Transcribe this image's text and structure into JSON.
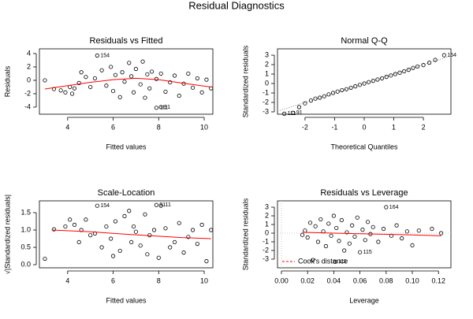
{
  "title": "Residual Diagnostics",
  "chart_data": [
    {
      "type": "scatter",
      "title": "Residuals vs Fitted",
      "xlabel": "Fitted values",
      "ylabel": "Residuals",
      "xlim": [
        2.76,
        10.38
      ],
      "ylim": [
        -5.06,
        4.7
      ],
      "xticks": [
        4,
        6,
        8,
        10
      ],
      "yticks": [
        -4,
        -2,
        0,
        2,
        4
      ],
      "color": "#000000",
      "x": [
        3.0,
        3.4,
        3.7,
        3.9,
        4.1,
        4.2,
        4.3,
        4.5,
        4.6,
        4.8,
        5.0,
        5.2,
        5.3,
        5.5,
        5.7,
        5.9,
        6.0,
        6.1,
        6.3,
        6.4,
        6.5,
        6.7,
        6.8,
        6.9,
        7.0,
        7.2,
        7.3,
        7.4,
        7.5,
        7.6,
        7.7,
        7.9,
        7.9,
        8.1,
        8.1,
        8.3,
        8.5,
        8.7,
        8.9,
        9.1,
        9.3,
        9.5,
        9.7,
        9.9,
        10.1,
        10.3
      ],
      "y": [
        0.0,
        -1.3,
        -1.5,
        -1.8,
        -1.0,
        -2.0,
        -1.2,
        -0.4,
        1.2,
        0.5,
        -1.0,
        0.3,
        3.7,
        1.5,
        -0.8,
        2.0,
        -1.6,
        0.8,
        -2.5,
        1.2,
        -0.2,
        2.6,
        0.6,
        -1.8,
        1.7,
        -0.6,
        2.8,
        -2.6,
        0.9,
        -1.2,
        1.3,
        -4.1,
        0.2,
        -4.0,
        1.0,
        -1.7,
        -0.3,
        0.7,
        -2.3,
        -0.5,
        1.0,
        -1.1,
        0.3,
        -1.8,
        0.1,
        -1.2
      ],
      "trend": {
        "color": "#ff0000",
        "x": [
          3.0,
          4.0,
          5.0,
          6.0,
          7.0,
          8.0,
          9.0,
          10.3
        ],
        "y": [
          -1.3,
          -0.8,
          -0.3,
          0.1,
          0.3,
          0.1,
          -0.4,
          -1.0
        ]
      },
      "annotations": [
        {
          "text": "154",
          "x": 5.3,
          "y": 3.7
        },
        {
          "text": "111",
          "x": 7.9,
          "y": -4.1
        },
        {
          "text": "91",
          "x": 8.1,
          "y": -4.0
        }
      ]
    },
    {
      "type": "scatter",
      "title": "Normal Q-Q",
      "xlabel": "Theoretical Quantiles",
      "ylabel": "Standardized residuals",
      "xlim": [
        -2.93,
        2.93
      ],
      "ylim": [
        -3.25,
        3.67
      ],
      "xticks": [
        -2,
        -1,
        0,
        1,
        2
      ],
      "yticks": [
        -3,
        -2,
        -1,
        0,
        1,
        2,
        3
      ],
      "color": "#000000",
      "x": [
        -2.7,
        -2.4,
        -2.2,
        -2.0,
        -1.8,
        -1.65,
        -1.5,
        -1.35,
        -1.2,
        -1.05,
        -0.9,
        -0.75,
        -0.6,
        -0.45,
        -0.3,
        -0.15,
        0,
        0.15,
        0.3,
        0.45,
        0.6,
        0.75,
        0.9,
        1.05,
        1.2,
        1.35,
        1.5,
        1.65,
        1.8,
        2.0,
        2.2,
        2.4,
        2.7
      ],
      "y": [
        -3.2,
        -3.1,
        -2.5,
        -2.1,
        -1.8,
        -1.6,
        -1.5,
        -1.35,
        -1.15,
        -1.0,
        -0.85,
        -0.7,
        -0.6,
        -0.45,
        -0.3,
        -0.15,
        0,
        0.15,
        0.28,
        0.42,
        0.55,
        0.7,
        0.85,
        1.0,
        1.15,
        1.3,
        1.45,
        1.65,
        1.8,
        1.95,
        2.2,
        2.5,
        3.0
      ],
      "reference": {
        "color": "#888888",
        "x": [
          -2.93,
          2.93
        ],
        "y": [
          -2.93,
          2.93
        ]
      },
      "annotations": [
        {
          "text": "111",
          "x": -2.7,
          "y": -3.2
        },
        {
          "text": "91",
          "x": -2.4,
          "y": -3.1
        },
        {
          "text": "154",
          "x": 2.7,
          "y": 3.0
        }
      ]
    },
    {
      "type": "scatter",
      "title": "Scale-Location",
      "xlabel": "Fitted values",
      "ylabel": "√|Standardized residuals|",
      "xlim": [
        2.76,
        10.38
      ],
      "ylim": [
        -0.09,
        1.84
      ],
      "xticks": [
        4,
        6,
        8,
        10
      ],
      "yticks": [
        {
          "value": 0,
          "label": "0.0"
        },
        {
          "value": 0.5,
          "label": "0.5"
        },
        {
          "value": 1,
          "label": "1.0"
        },
        {
          "value": 1.5,
          "label": "1.5"
        }
      ],
      "color": "#000000",
      "x": [
        3.0,
        3.4,
        3.9,
        4.1,
        4.3,
        4.5,
        4.6,
        4.8,
        5.0,
        5.2,
        5.3,
        5.5,
        5.7,
        5.9,
        6.0,
        6.1,
        6.3,
        6.5,
        6.7,
        6.8,
        6.9,
        7.0,
        7.2,
        7.4,
        7.5,
        7.6,
        7.8,
        7.9,
        8.0,
        8.1,
        8.3,
        8.5,
        8.7,
        8.9,
        9.1,
        9.3,
        9.5,
        9.7,
        9.9,
        10.1,
        10.3
      ],
      "y": [
        0.17,
        1.02,
        1.1,
        1.3,
        1.15,
        0.65,
        1.0,
        1.3,
        0.85,
        0.9,
        1.7,
        0.5,
        1.1,
        0.75,
        0.25,
        1.25,
        0.4,
        1.4,
        1.55,
        0.65,
        1.1,
        0.95,
        0.55,
        1.45,
        0.3,
        0.85,
        1.0,
        1.72,
        0.2,
        1.7,
        1.05,
        0.5,
        0.65,
        1.2,
        0.35,
        0.8,
        1.0,
        0.6,
        1.15,
        0.1,
        1.0
      ],
      "trend": {
        "color": "#ff0000",
        "x": [
          3.3,
          5.0,
          6.5,
          8.0,
          9.0,
          10.3
        ],
        "y": [
          1.0,
          0.95,
          0.88,
          0.82,
          0.78,
          0.75
        ]
      },
      "annotations": [
        {
          "text": "154",
          "x": 5.3,
          "y": 1.7
        },
        {
          "text": "9111",
          "x": 7.9,
          "y": 1.72
        }
      ]
    },
    {
      "type": "scatter",
      "title": "Residuals vs Leverage",
      "xlabel": "Leverage",
      "ylabel": "Standardized residuals",
      "xlim": [
        -0.003,
        0.1295
      ],
      "ylim": [
        -4.0,
        3.73
      ],
      "xticks": [
        {
          "value": 0,
          "label": "0.00"
        },
        {
          "value": 0.02,
          "label": "0.02"
        },
        {
          "value": 0.04,
          "label": "0.04"
        },
        {
          "value": 0.06,
          "label": "0.06"
        },
        {
          "value": 0.08,
          "label": "0.08"
        },
        {
          "value": 0.1,
          "label": "0.10"
        },
        {
          "value": 0.12,
          "label": "0.12"
        }
      ],
      "yticks": [
        -3,
        -2,
        -1,
        0,
        1,
        2,
        3
      ],
      "color": "#000000",
      "x": [
        0.016,
        0.018,
        0.02,
        0.022,
        0.024,
        0.026,
        0.028,
        0.03,
        0.032,
        0.034,
        0.036,
        0.038,
        0.04,
        0.041,
        0.042,
        0.044,
        0.046,
        0.048,
        0.05,
        0.052,
        0.054,
        0.056,
        0.058,
        0.06,
        0.062,
        0.064,
        0.066,
        0.068,
        0.07,
        0.074,
        0.078,
        0.08,
        0.084,
        0.088,
        0.092,
        0.096,
        0.1,
        0.105,
        0.115,
        0.122
      ],
      "y": [
        -0.2,
        0.3,
        -0.5,
        1.2,
        -3.1,
        0.8,
        -1.0,
        1.6,
        0.2,
        -1.5,
        1.1,
        -0.3,
        2.0,
        -3.3,
        0.6,
        -0.9,
        1.5,
        -2.0,
        0.1,
        -1.2,
        0.9,
        -0.4,
        1.8,
        -2.2,
        0.4,
        -0.8,
        1.3,
        -0.1,
        0.7,
        -1.0,
        0.5,
        3.0,
        -0.3,
        0.9,
        -0.6,
        0.2,
        -1.4,
        0.3,
        0.5,
        0.0
      ],
      "trend": {
        "color": "#ff0000",
        "x": [
          0.016,
          0.04,
          0.07,
          0.1,
          0.122
        ],
        "y": [
          0.1,
          0.0,
          -0.1,
          -0.2,
          -0.3
        ]
      },
      "annotations": [
        {
          "text": "164",
          "x": 0.08,
          "y": 3.0
        },
        {
          "text": "115",
          "x": 0.06,
          "y": -2.2
        },
        {
          "text": "111",
          "x": 0.041,
          "y": -3.3
        }
      ],
      "legend": {
        "position": "bottom-left",
        "entries": [
          {
            "name": "Cook's distance",
            "color": "#ff0000"
          }
        ]
      }
    }
  ]
}
